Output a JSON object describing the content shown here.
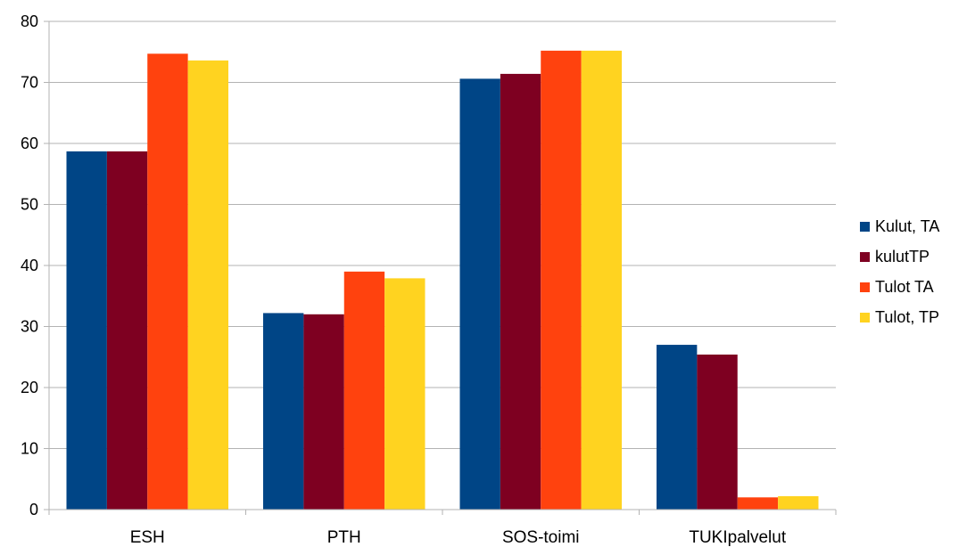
{
  "chart_data": {
    "type": "bar",
    "categories": [
      "ESH",
      "PTH",
      "SOS-toimi",
      "TUKIpalvelut"
    ],
    "series": [
      {
        "name": "Kulut, TA",
        "color": "#004586",
        "values": [
          58.7,
          32.2,
          70.6,
          27.0
        ]
      },
      {
        "name": "kulutTP",
        "color": "#7e0021",
        "values": [
          58.7,
          32.0,
          71.4,
          25.4
        ]
      },
      {
        "name": "Tulot TA",
        "color": "#ff420e",
        "values": [
          74.7,
          39.0,
          75.2,
          2.0
        ]
      },
      {
        "name": "Tulot, TP",
        "color": "#ffd320",
        "values": [
          73.6,
          37.9,
          75.2,
          2.2
        ]
      }
    ],
    "ylim": [
      0,
      80
    ],
    "yticks": [
      "0",
      "10",
      "20",
      "30",
      "40",
      "50",
      "60",
      "70",
      "80"
    ],
    "grid": true,
    "legend": "right"
  }
}
